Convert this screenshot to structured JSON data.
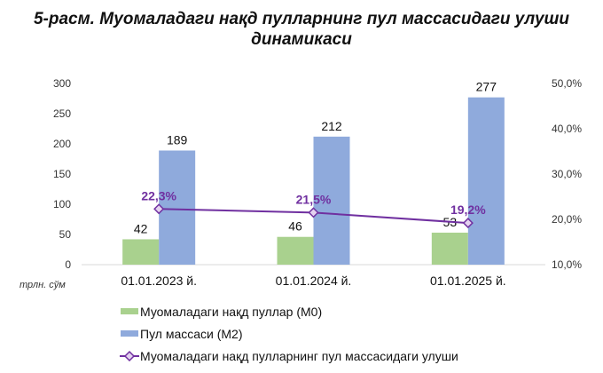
{
  "chart_data": {
    "type": "bar",
    "title_lines": [
      "5-расм. Муомаладаги нақд пулларнинг пул массасидаги улуши",
      "динамикаси"
    ],
    "categories": [
      "01.01.2023 й.",
      "01.01.2024 й.",
      "01.01.2025 й."
    ],
    "y_unit_label": "трлн. сўм",
    "ylim": [
      0,
      300
    ],
    "yticks": [
      0,
      50,
      100,
      150,
      200,
      250,
      300
    ],
    "y2lim": [
      10,
      50
    ],
    "y2ticks": [
      "10,0%",
      "20,0%",
      "30,0%",
      "40,0%",
      "50,0%"
    ],
    "y2tick_values": [
      10,
      20,
      30,
      40,
      50
    ],
    "grid": false,
    "legend_placement": "bottom",
    "series": [
      {
        "name": "Муомаладаги  нақд пуллар  (М0)",
        "kind": "bar",
        "axis": "left",
        "color": "#a9d18e",
        "values": [
          42,
          46,
          53
        ],
        "labels": [
          "42",
          "46",
          "53"
        ]
      },
      {
        "name": "Пул массаси (М2)",
        "kind": "bar",
        "axis": "left",
        "color": "#8faadc",
        "values": [
          189,
          212,
          277
        ],
        "labels": [
          "189",
          "212",
          "277"
        ]
      },
      {
        "name": "Муомаладаги  нақд пулларнинг  пул массасидаги  улуши",
        "kind": "line",
        "axis": "right",
        "color": "#7030a0",
        "values": [
          22.3,
          21.5,
          19.2
        ],
        "labels": [
          "22,3%",
          "21,5%",
          "19,2%"
        ]
      }
    ]
  }
}
